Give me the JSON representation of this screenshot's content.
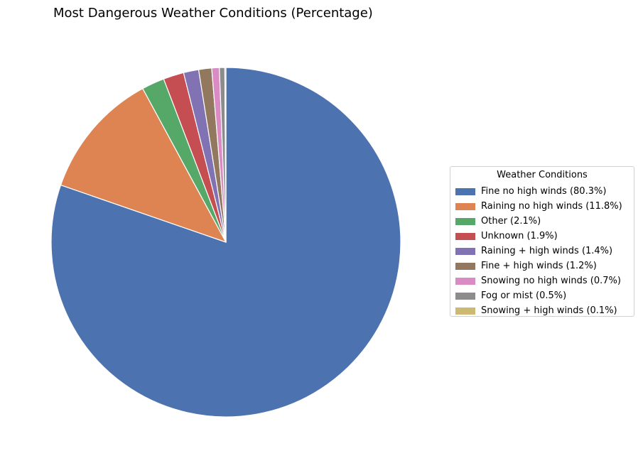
{
  "chart_data": {
    "type": "pie",
    "title": "Most Dangerous Weather Conditions (Percentage)",
    "start_angle_deg": 90,
    "direction": "clockwise",
    "legend": {
      "title": "Weather Conditions",
      "placement": "right"
    },
    "slices": [
      {
        "label": "Fine no high winds",
        "legend_label": "Fine no high winds (80.3%)",
        "value": 80.3,
        "color": "#4c72b0"
      },
      {
        "label": "Raining no high winds",
        "legend_label": "Raining no high winds (11.8%)",
        "value": 11.8,
        "color": "#dd8452"
      },
      {
        "label": "Other",
        "legend_label": "Other (2.1%)",
        "value": 2.1,
        "color": "#55a868"
      },
      {
        "label": "Unknown",
        "legend_label": "Unknown (1.9%)",
        "value": 1.9,
        "color": "#c44e52"
      },
      {
        "label": "Raining + high winds",
        "legend_label": "Raining + high winds (1.4%)",
        "value": 1.4,
        "color": "#8172b3"
      },
      {
        "label": "Fine + high winds",
        "legend_label": "Fine + high winds (1.2%)",
        "value": 1.2,
        "color": "#937860"
      },
      {
        "label": "Snowing no high winds",
        "legend_label": "Snowing no high winds (0.7%)",
        "value": 0.7,
        "color": "#da8bc3"
      },
      {
        "label": "Fog or mist",
        "legend_label": "Fog or mist (0.5%)",
        "value": 0.5,
        "color": "#8c8c8c"
      },
      {
        "label": "Snowing + high winds",
        "legend_label": "Snowing + high winds (0.1%)",
        "value": 0.1,
        "color": "#ccb974"
      }
    ]
  }
}
